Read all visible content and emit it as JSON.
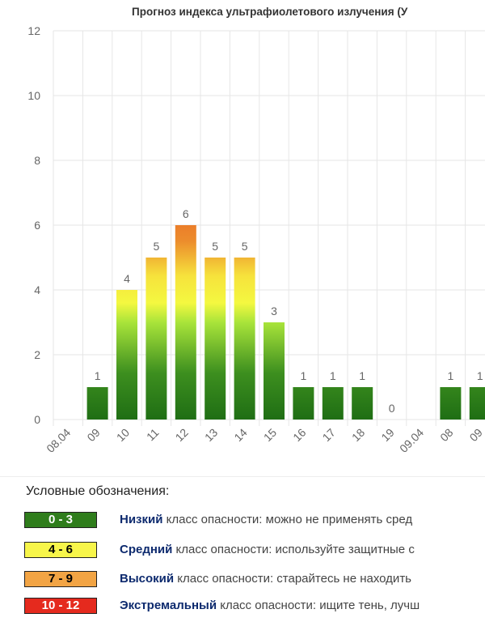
{
  "chart_data": {
    "type": "bar",
    "title": "Прогноз индекса ультрафиолетового излучения (У",
    "xlabel": "",
    "ylabel": "",
    "ylim": [
      0,
      12
    ],
    "yticks": [
      0,
      2,
      4,
      6,
      8,
      10,
      12
    ],
    "grid": true,
    "categories": [
      "08.04",
      "09",
      "10",
      "11",
      "12",
      "13",
      "14",
      "15",
      "16",
      "17",
      "18",
      "19",
      "09.04",
      "08",
      "09"
    ],
    "values": [
      null,
      1,
      4,
      5,
      6,
      5,
      5,
      3,
      1,
      1,
      1,
      0,
      null,
      1,
      1
    ],
    "colors": {
      "low": "#2f7d1c",
      "medium": "#f6f63a",
      "high": "#f0a23a",
      "extreme": "#e52a1e"
    }
  },
  "legend": {
    "title": "Условные обозначения:",
    "items": [
      {
        "range": "0 - 3",
        "color": "#2f7d1c",
        "text_color": "#ffffff",
        "bold": "Низкий",
        "text": " класс опасности: можно не применять сред"
      },
      {
        "range": "4 - 6",
        "color": "#f7f54a",
        "text_color": "#000000",
        "bold": "Средний",
        "text": " класс опасности: используйте защитные с"
      },
      {
        "range": "7 - 9",
        "color": "#f2a444",
        "text_color": "#000000",
        "bold": "Высокий",
        "text": " класс опасности: старайтесь не находить"
      },
      {
        "range": "10 - 12",
        "color": "#e52a1e",
        "text_color": "#ffffff",
        "bold": "Экстремальный",
        "text": " класс опасности: ищите тень, лучш"
      }
    ]
  }
}
